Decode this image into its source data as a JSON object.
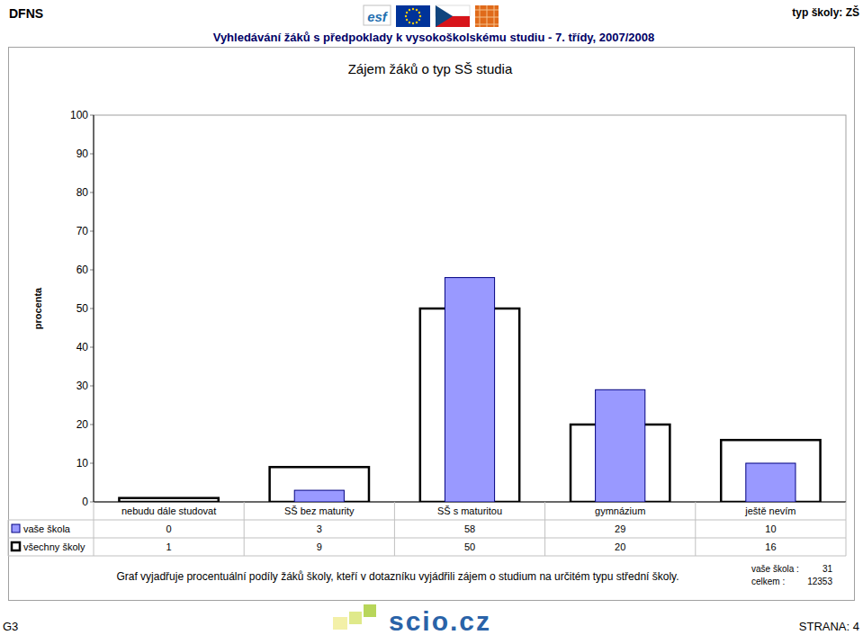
{
  "header": {
    "org": "DFNS",
    "title": "Vyhledávání žáků s předpoklady k vysokoškolskému studiu - 7. třídy, 2007/2008",
    "school_type": "typ školy: ZŠ",
    "logo": "esf"
  },
  "chart_data": {
    "type": "bar",
    "title": "Zájem žáků o typ SŠ studia",
    "y_label": "procenta",
    "categories": [
      "nebudu dále studovat",
      "SŠ bez maturity",
      "SŠ s maturitou",
      "gymnázium",
      "ještě nevím"
    ],
    "series": [
      {
        "name": "vaše škola",
        "color": "#9999ff",
        "values": [
          0,
          3,
          58,
          29,
          10
        ]
      },
      {
        "name": "všechny školy",
        "color": "#ffffff",
        "values": [
          1,
          9,
          50,
          20,
          16
        ]
      }
    ],
    "ylim": [
      0,
      100
    ],
    "yticks": [
      0,
      10,
      20,
      30,
      40,
      50,
      60,
      70,
      80,
      90,
      100
    ],
    "grid": false
  },
  "caption": "Graf vyjadřuje procentuální podíly žáků školy, kteří v dotazníku vyjádřili zájem o studium na určitém typu střední školy.",
  "counts": [
    {
      "label": "vaše škola :",
      "value": 31
    },
    {
      "label": "celkem :",
      "value": 12353
    }
  ],
  "footer": {
    "code": "G3",
    "logo": "scio.cz",
    "page": "STRANA: 4"
  }
}
